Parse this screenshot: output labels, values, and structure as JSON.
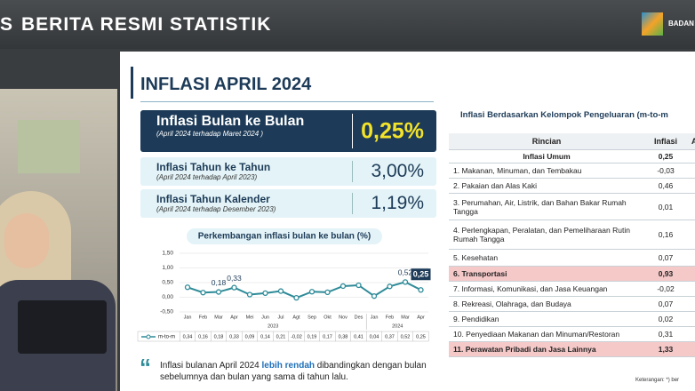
{
  "header": {
    "prefix": "S",
    "title": "BERITA RESMI STATISTIK",
    "logo_text": "BADAN"
  },
  "slide": {
    "title": "INFLASI APRIL 2024"
  },
  "cards": [
    {
      "title": "Inflasi Bulan ke Bulan",
      "subtitle": "(April 2024 terhadap Maret 2024 )",
      "value": "0,25%"
    },
    {
      "title": "Inflasi Tahun ke Tahun",
      "subtitle": "(April 2024 terhadap April 2023)",
      "value": "3,00%"
    },
    {
      "title": "Inflasi Tahun Kalender",
      "subtitle": "(April 2024 terhadap Desember 2023)",
      "value": "1,19%"
    }
  ],
  "chart_data": {
    "type": "line",
    "title": "Perkembangan inflasi bulan ke bulan (%)",
    "categories": [
      "Jan",
      "Feb",
      "Mar",
      "Apr",
      "Mei",
      "Jun",
      "Jul",
      "Agt",
      "Sep",
      "Okt",
      "Nov",
      "Des",
      "Jan",
      "Feb",
      "Mar",
      "Apr"
    ],
    "years": [
      "2023",
      "2024"
    ],
    "series": [
      {
        "name": "m-to-m",
        "color": "#2e8b98",
        "values": [
          0.34,
          0.16,
          0.18,
          0.33,
          0.09,
          0.14,
          0.21,
          -0.02,
          0.19,
          0.17,
          0.38,
          0.41,
          0.04,
          0.37,
          0.52,
          0.25
        ],
        "value_labels": [
          "0,34",
          "0,16",
          "0,18",
          "0,33",
          "0,09",
          "0,14",
          "0,21",
          "-0,02",
          "0,19",
          "0,17",
          "0,38",
          "0,41",
          "0,04",
          "0,37",
          "0,52",
          "0,25"
        ]
      }
    ],
    "annotations": [
      {
        "index": 2,
        "label": "0,18"
      },
      {
        "index": 3,
        "label": "0,33"
      },
      {
        "index": 14,
        "label": "0,52"
      },
      {
        "index": 15,
        "label": "0,25"
      }
    ],
    "ylim": [
      -0.5,
      1.5
    ],
    "yticks": [
      {
        "value": -0.5,
        "label": "-0,50"
      },
      {
        "value": 0,
        "label": "0,00"
      },
      {
        "value": 0.5,
        "label": "0,50"
      },
      {
        "value": 1,
        "label": "1,00"
      },
      {
        "value": 1.5,
        "label": "1,50"
      }
    ],
    "grid": true
  },
  "table": {
    "title": "Inflasi Berdasarkan Kelompok Pengeluaran (m-to-m",
    "headers": [
      "Rincian",
      "Inflasi",
      "An"
    ],
    "rows": [
      [
        "Inflasi Umum",
        "0,25"
      ],
      [
        "1.  Makanan, Minuman, dan Tembakau",
        "-0,03"
      ],
      [
        "2.  Pakaian dan Alas Kaki",
        "0,46"
      ],
      [
        "3.  Perumahan, Air, Listrik, dan Bahan Bakar Rumah Tangga",
        "0,01"
      ],
      [
        "4.  Perlengkapan, Peralatan, dan Pemeliharaan Rutin Rumah Tangga",
        "0,16"
      ],
      [
        "5.  Kesehatan",
        "0,07"
      ],
      [
        "6.  Transportasi",
        "0,93"
      ],
      [
        "7.  Informasi, Komunikasi, dan Jasa Keuangan",
        "-0,02"
      ],
      [
        "8.  Rekreasi, Olahraga, dan Budaya",
        "0,07"
      ],
      [
        "9.  Pendidikan",
        "0,02"
      ],
      [
        "10. Penyediaan Makanan dan Minuman/Restoran",
        "0,31"
      ],
      [
        "11. Perawatan Pribadi dan Jasa Lainnya",
        "1,33"
      ]
    ],
    "highlighted_rows": [
      6,
      11
    ],
    "note": "Keterangan: *) ber"
  },
  "footer": {
    "parts": [
      "Inflasi bulanan April 2024 ",
      "lebih rendah",
      " dibandingkan dengan bulan sebelumnya dan bulan yang sama di tahun lalu."
    ]
  }
}
